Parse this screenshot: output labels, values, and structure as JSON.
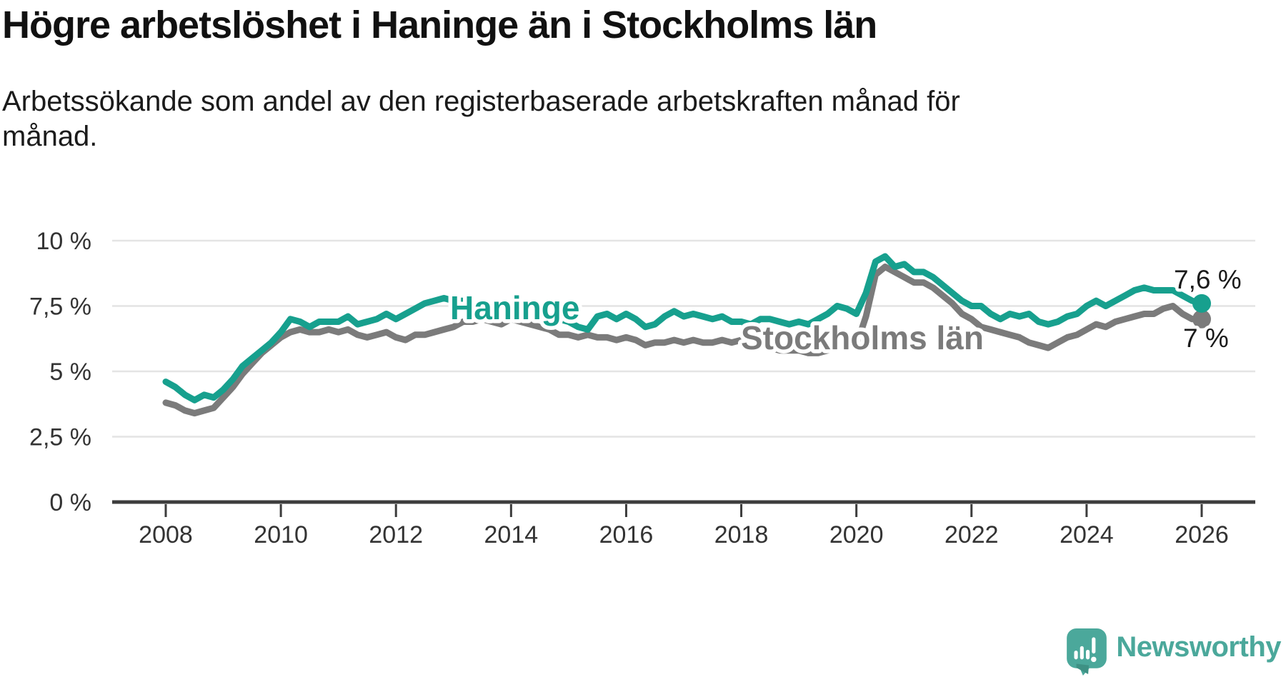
{
  "header": {
    "title": "Högre arbetslöshet i Haninge än i Stockholms län",
    "subtitle": "Arbetssökande som andel av den registerbaserade arbetskraften månad för månad."
  },
  "chart_data": {
    "type": "line",
    "title": "Högre arbetslöshet i Haninge än i Stockholms län",
    "subtitle": "Arbetssökande som andel av den registerbaserade arbetskraften månad för månad.",
    "grid": "horizontal",
    "legend": "inline-labels-on-lines",
    "x_axis": {
      "tick_years": [
        2008,
        2010,
        2012,
        2014,
        2016,
        2018,
        2020,
        2022,
        2024,
        2026
      ],
      "tick_labels": [
        "2008",
        "2010",
        "2012",
        "2014",
        "2016",
        "2018",
        "2020",
        "2022",
        "2024",
        "2026"
      ]
    },
    "y_axis": {
      "unit": "%",
      "tick_values": [
        0,
        2.5,
        5,
        7.5,
        10
      ],
      "tick_labels": [
        "0 %",
        "2,5 %",
        "5 %",
        "7,5 %",
        "10 %"
      ],
      "range": [
        0,
        10
      ]
    },
    "series": [
      {
        "name": "Haninge",
        "color": "#17a08e",
        "start_year": 2008,
        "points_per_year": 6,
        "end_value": 7.6,
        "end_value_label": "7,6 %",
        "values": [
          4.6,
          4.4,
          4.1,
          3.9,
          4.1,
          4.0,
          4.3,
          4.7,
          5.2,
          5.5,
          5.8,
          6.1,
          6.5,
          7.0,
          6.9,
          6.7,
          6.9,
          6.9,
          6.9,
          7.1,
          6.8,
          6.9,
          7.0,
          7.2,
          7.0,
          7.2,
          7.4,
          7.6,
          7.7,
          7.8,
          7.7,
          7.7,
          7.6,
          7.5,
          7.4,
          7.4,
          7.3,
          7.2,
          7.2,
          7.1,
          7.0,
          7.0,
          6.9,
          6.7,
          6.6,
          7.1,
          7.2,
          7.0,
          7.2,
          7.0,
          6.7,
          6.8,
          7.1,
          7.3,
          7.1,
          7.2,
          7.1,
          7.0,
          7.1,
          6.9,
          6.9,
          6.8,
          7.0,
          7.0,
          6.9,
          6.8,
          6.9,
          6.8,
          7.0,
          7.2,
          7.5,
          7.4,
          7.2,
          8.0,
          9.2,
          9.4,
          9.0,
          9.1,
          8.8,
          8.8,
          8.6,
          8.3,
          8.0,
          7.7,
          7.5,
          7.5,
          7.2,
          7.0,
          7.2,
          7.1,
          7.2,
          6.9,
          6.8,
          6.9,
          7.1,
          7.2,
          7.5,
          7.7,
          7.5,
          7.7,
          7.9,
          8.1,
          8.2,
          8.1,
          8.1,
          8.1,
          7.9,
          7.7,
          7.6
        ]
      },
      {
        "name": "Stockholms län",
        "color": "#7b7b7b",
        "start_year": 2008,
        "points_per_year": 6,
        "end_value": 7.0,
        "end_value_label": "7 %",
        "values": [
          3.8,
          3.7,
          3.5,
          3.4,
          3.5,
          3.6,
          4.0,
          4.4,
          4.9,
          5.3,
          5.7,
          6.0,
          6.3,
          6.5,
          6.6,
          6.5,
          6.5,
          6.6,
          6.5,
          6.6,
          6.4,
          6.3,
          6.4,
          6.5,
          6.3,
          6.2,
          6.4,
          6.4,
          6.5,
          6.6,
          6.7,
          6.9,
          6.9,
          7.0,
          6.9,
          6.8,
          7.0,
          6.9,
          6.8,
          6.7,
          6.6,
          6.4,
          6.4,
          6.3,
          6.4,
          6.3,
          6.3,
          6.2,
          6.3,
          6.2,
          6.0,
          6.1,
          6.1,
          6.2,
          6.1,
          6.2,
          6.1,
          6.1,
          6.2,
          6.1,
          6.2,
          6.1,
          6.0,
          5.9,
          5.8,
          5.8,
          5.8,
          5.7,
          5.7,
          5.8,
          5.9,
          5.9,
          6.0,
          7.1,
          8.7,
          9.0,
          8.8,
          8.6,
          8.4,
          8.4,
          8.2,
          7.9,
          7.6,
          7.2,
          7.0,
          6.7,
          6.6,
          6.5,
          6.4,
          6.3,
          6.1,
          6.0,
          5.9,
          6.1,
          6.3,
          6.4,
          6.6,
          6.8,
          6.7,
          6.9,
          7.0,
          7.1,
          7.2,
          7.2,
          7.4,
          7.5,
          7.2,
          7.0,
          7.0
        ]
      }
    ],
    "colors": {
      "axis": "#3d3d3d",
      "gridline": "#e4e4e4",
      "tick_text": "#333333",
      "value_text": "#1a1a1a"
    }
  },
  "branding": {
    "logo_text": "Newsworthy",
    "logo_color": "#4ba89b",
    "icon": "newsworthy-speech-bubble-chart-icon"
  }
}
